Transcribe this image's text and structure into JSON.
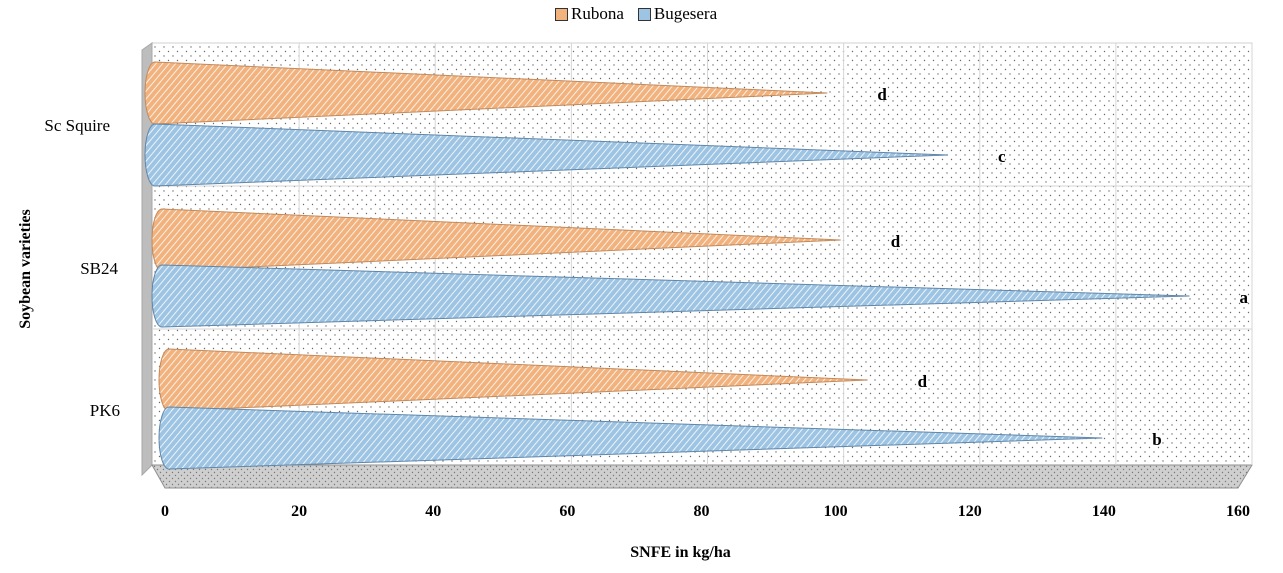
{
  "chart_data": {
    "type": "bar",
    "orientation": "horizontal",
    "title": "",
    "xlabel": "SNFE in kg/ha",
    "ylabel": "Soybean varieties",
    "categories": [
      "PK6",
      "SB24",
      "Sc Squire"
    ],
    "series": [
      {
        "name": "Rubona",
        "color": "#f2b27e",
        "values": [
          107,
          103,
          101
        ],
        "letters": [
          "d",
          "d",
          "d"
        ]
      },
      {
        "name": "Bugesera",
        "color": "#9ec4e4",
        "values": [
          142,
          155,
          119
        ],
        "letters": [
          "b",
          "a",
          "c"
        ]
      }
    ],
    "xlim": [
      0,
      160
    ],
    "xticks": [
      "0",
      "20",
      "40",
      "60",
      "80",
      "100",
      "120",
      "140",
      "160"
    ],
    "legend_position": "top",
    "grid": true
  }
}
